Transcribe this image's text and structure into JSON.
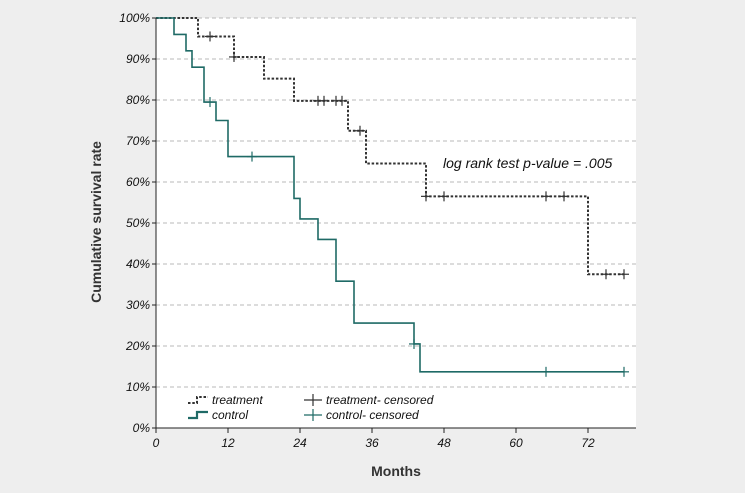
{
  "chart_data": {
    "type": "line",
    "subtype": "kaplan-meier",
    "title": "",
    "xlabel": "Months",
    "ylabel": "Cumulative survival rate",
    "xlim": [
      0,
      80
    ],
    "ylim": [
      0,
      100
    ],
    "x_ticks": [
      0,
      12,
      24,
      36,
      48,
      60,
      72
    ],
    "x_tick_labels": [
      "0",
      "12",
      "24",
      "36",
      "48",
      "60",
      "72"
    ],
    "y_ticks": [
      0,
      10,
      20,
      30,
      40,
      50,
      60,
      70,
      80,
      90,
      100
    ],
    "y_tick_labels": [
      "0%",
      "10%",
      "20%",
      "30%",
      "40%",
      "50%",
      "60%",
      "70%",
      "80%",
      "90%",
      "100%"
    ],
    "grid": "horizontal dashed",
    "annotation": "log rank test p-value = .005",
    "legend_position": "bottom-left",
    "legend": [
      {
        "label": "treatment",
        "kind": "line",
        "series": "treatment"
      },
      {
        "label": "control",
        "kind": "line",
        "series": "control"
      },
      {
        "label": "treatment- censored",
        "kind": "censor",
        "series": "treatment"
      },
      {
        "label": "control- censored",
        "kind": "censor",
        "series": "control"
      }
    ],
    "series": [
      {
        "name": "treatment",
        "color": "#333333",
        "style": "dotted",
        "steps": [
          [
            0,
            100
          ],
          [
            7,
            95.5
          ],
          [
            13,
            90.5
          ],
          [
            18,
            85.2
          ],
          [
            23,
            79.8
          ],
          [
            32,
            72.5
          ],
          [
            35,
            64.5
          ],
          [
            45,
            56.5
          ],
          [
            72,
            37.5
          ],
          [
            78,
            37.5
          ]
        ],
        "censored": [
          [
            9,
            95.5
          ],
          [
            13,
            90.5
          ],
          [
            27,
            79.8
          ],
          [
            28,
            79.8
          ],
          [
            30,
            79.8
          ],
          [
            31,
            79.8
          ],
          [
            34,
            72.5
          ],
          [
            45,
            56.5
          ],
          [
            48,
            56.5
          ],
          [
            65,
            56.5
          ],
          [
            68,
            56.5
          ],
          [
            75,
            37.5
          ],
          [
            78,
            37.5
          ]
        ]
      },
      {
        "name": "control",
        "color": "#1f6a66",
        "style": "solid",
        "steps": [
          [
            0,
            100
          ],
          [
            3,
            96
          ],
          [
            5,
            92
          ],
          [
            6,
            88
          ],
          [
            8,
            79.5
          ],
          [
            10,
            75
          ],
          [
            12,
            66.2
          ],
          [
            23,
            56
          ],
          [
            24,
            51
          ],
          [
            27,
            46
          ],
          [
            30,
            35.8
          ],
          [
            33,
            25.6
          ],
          [
            43,
            20.5
          ],
          [
            44,
            13.7
          ],
          [
            78,
            13.7
          ]
        ],
        "censored": [
          [
            9,
            79.5
          ],
          [
            16,
            66.2
          ],
          [
            43,
            20.5
          ],
          [
            65,
            13.7
          ],
          [
            78,
            13.7
          ]
        ]
      }
    ]
  }
}
